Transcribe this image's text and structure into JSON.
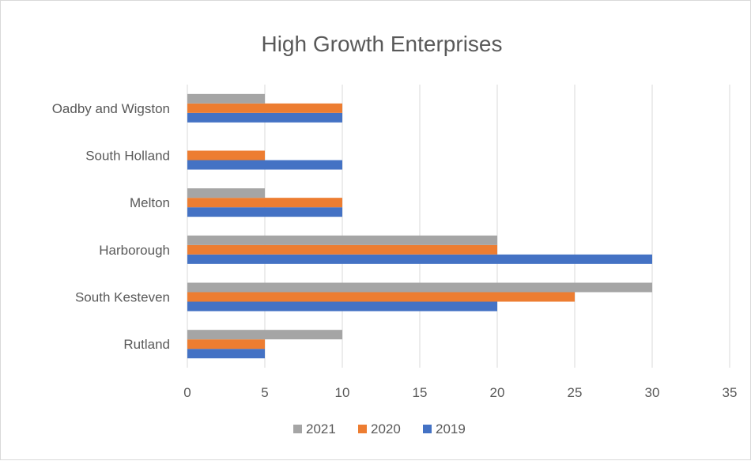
{
  "chart_data": {
    "type": "bar",
    "orientation": "horizontal",
    "title": "High Growth Enterprises",
    "xlabel": "",
    "ylabel": "",
    "categories": [
      "Rutland",
      "South Kesteven",
      "Harborough",
      "Melton",
      "South Holland",
      "Oadby and Wigston"
    ],
    "series": [
      {
        "name": "2019",
        "color": "#4472c4",
        "values": [
          5,
          20,
          30,
          10,
          10,
          10
        ]
      },
      {
        "name": "2020",
        "color": "#ed7d31",
        "values": [
          5,
          25,
          20,
          10,
          5,
          10
        ]
      },
      {
        "name": "2021",
        "color": "#a5a5a5",
        "values": [
          10,
          30,
          20,
          5,
          0,
          5
        ]
      }
    ],
    "xlim": [
      0,
      35
    ],
    "x_ticks": [
      0,
      5,
      10,
      15,
      20,
      25,
      30,
      35
    ],
    "grid": true,
    "legend_position": "bottom",
    "legend_order": [
      "2021",
      "2020",
      "2019"
    ]
  }
}
